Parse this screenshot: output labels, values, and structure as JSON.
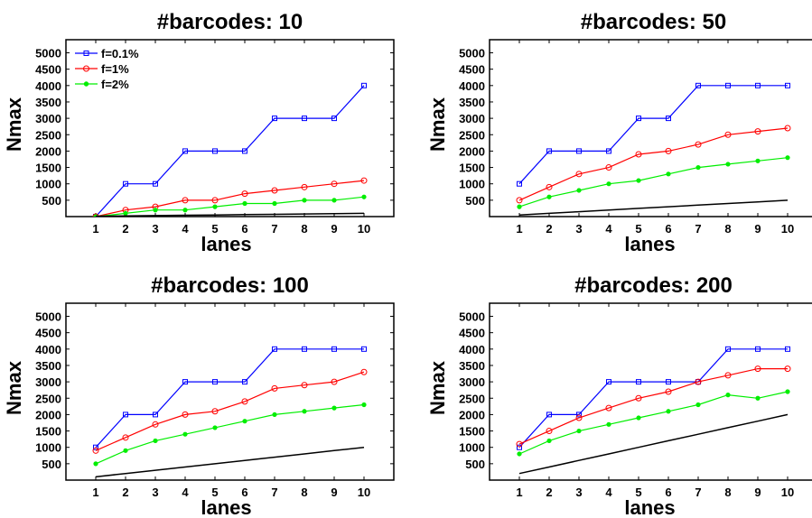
{
  "chart_data": [
    {
      "type": "line",
      "title": "#barcodes: 10",
      "xlabel": "lanes",
      "ylabel": "Nmax",
      "x": [
        1,
        2,
        3,
        4,
        5,
        6,
        7,
        8,
        9,
        10
      ],
      "xlim": [
        0,
        11
      ],
      "ylim": [
        0,
        5400
      ],
      "yticks": [
        500,
        1000,
        1500,
        2000,
        2500,
        3000,
        3500,
        4000,
        4500,
        5000
      ],
      "grid": false,
      "legend": "top-left",
      "series": [
        {
          "name": "f=0.1%",
          "color": "#0000ff",
          "marker": "square",
          "values": [
            0,
            1000,
            1000,
            2000,
            2000,
            2000,
            3000,
            3000,
            3000,
            4000
          ]
        },
        {
          "name": "f=1%",
          "color": "#ff0000",
          "marker": "circle",
          "values": [
            0,
            200,
            300,
            500,
            500,
            700,
            800,
            900,
            1000,
            1100
          ]
        },
        {
          "name": "f=2%",
          "color": "#00ee00",
          "marker": "dot",
          "values": [
            0,
            100,
            200,
            200,
            300,
            400,
            400,
            500,
            500,
            600
          ]
        },
        {
          "color": "#000000",
          "marker": "none",
          "values": [
            10,
            20,
            30,
            40,
            50,
            60,
            70,
            80,
            90,
            100
          ]
        }
      ]
    },
    {
      "type": "line",
      "title": "#barcodes: 50",
      "xlabel": "lanes",
      "ylabel": "Nmax",
      "x": [
        1,
        2,
        3,
        4,
        5,
        6,
        7,
        8,
        9,
        10
      ],
      "xlim": [
        0,
        11
      ],
      "ylim": [
        0,
        5400
      ],
      "yticks": [
        500,
        1000,
        1500,
        2000,
        2500,
        3000,
        3500,
        4000,
        4500,
        5000
      ],
      "grid": false,
      "series": [
        {
          "name": "f=0.1%",
          "color": "#0000ff",
          "marker": "square",
          "values": [
            1000,
            2000,
            2000,
            2000,
            3000,
            3000,
            4000,
            4000,
            4000,
            4000
          ]
        },
        {
          "name": "f=1%",
          "color": "#ff0000",
          "marker": "circle",
          "values": [
            500,
            900,
            1300,
            1500,
            1900,
            2000,
            2200,
            2500,
            2600,
            2700
          ]
        },
        {
          "name": "f=2%",
          "color": "#00ee00",
          "marker": "dot",
          "values": [
            300,
            600,
            800,
            1000,
            1100,
            1300,
            1500,
            1600,
            1700,
            1800
          ]
        },
        {
          "color": "#000000",
          "marker": "none",
          "values": [
            50,
            100,
            150,
            200,
            250,
            300,
            350,
            400,
            450,
            500
          ]
        }
      ]
    },
    {
      "type": "line",
      "title": "#barcodes: 100",
      "xlabel": "lanes",
      "ylabel": "Nmax",
      "x": [
        1,
        2,
        3,
        4,
        5,
        6,
        7,
        8,
        9,
        10
      ],
      "xlim": [
        0,
        11
      ],
      "ylim": [
        0,
        5400
      ],
      "yticks": [
        500,
        1000,
        1500,
        2000,
        2500,
        3000,
        3500,
        4000,
        4500,
        5000
      ],
      "grid": false,
      "series": [
        {
          "name": "f=0.1%",
          "color": "#0000ff",
          "marker": "square",
          "values": [
            1000,
            2000,
            2000,
            3000,
            3000,
            3000,
            4000,
            4000,
            4000,
            4000
          ]
        },
        {
          "name": "f=1%",
          "color": "#ff0000",
          "marker": "circle",
          "values": [
            900,
            1300,
            1700,
            2000,
            2100,
            2400,
            2800,
            2900,
            3000,
            3300
          ]
        },
        {
          "name": "f=2%",
          "color": "#00ee00",
          "marker": "dot",
          "values": [
            500,
            900,
            1200,
            1400,
            1600,
            1800,
            2000,
            2100,
            2200,
            2300
          ]
        },
        {
          "color": "#000000",
          "marker": "none",
          "values": [
            100,
            200,
            300,
            400,
            500,
            600,
            700,
            800,
            900,
            1000
          ]
        }
      ]
    },
    {
      "type": "line",
      "title": "#barcodes: 200",
      "xlabel": "lanes",
      "ylabel": "Nmax",
      "x": [
        1,
        2,
        3,
        4,
        5,
        6,
        7,
        8,
        9,
        10
      ],
      "xlim": [
        0,
        11
      ],
      "ylim": [
        0,
        5400
      ],
      "yticks": [
        500,
        1000,
        1500,
        2000,
        2500,
        3000,
        3500,
        4000,
        4500,
        5000
      ],
      "grid": false,
      "series": [
        {
          "name": "f=0.1%",
          "color": "#0000ff",
          "marker": "square",
          "values": [
            1000,
            2000,
            2000,
            3000,
            3000,
            3000,
            3000,
            4000,
            4000,
            4000
          ]
        },
        {
          "name": "f=1%",
          "color": "#ff0000",
          "marker": "circle",
          "values": [
            1100,
            1500,
            1900,
            2200,
            2500,
            2700,
            3000,
            3200,
            3400,
            3400
          ]
        },
        {
          "name": "f=2%",
          "color": "#00ee00",
          "marker": "dot",
          "values": [
            800,
            1200,
            1500,
            1700,
            1900,
            2100,
            2300,
            2600,
            2500,
            2700
          ]
        },
        {
          "color": "#000000",
          "marker": "none",
          "values": [
            200,
            400,
            600,
            800,
            1000,
            1200,
            1400,
            1600,
            1800,
            2000
          ]
        }
      ]
    }
  ]
}
